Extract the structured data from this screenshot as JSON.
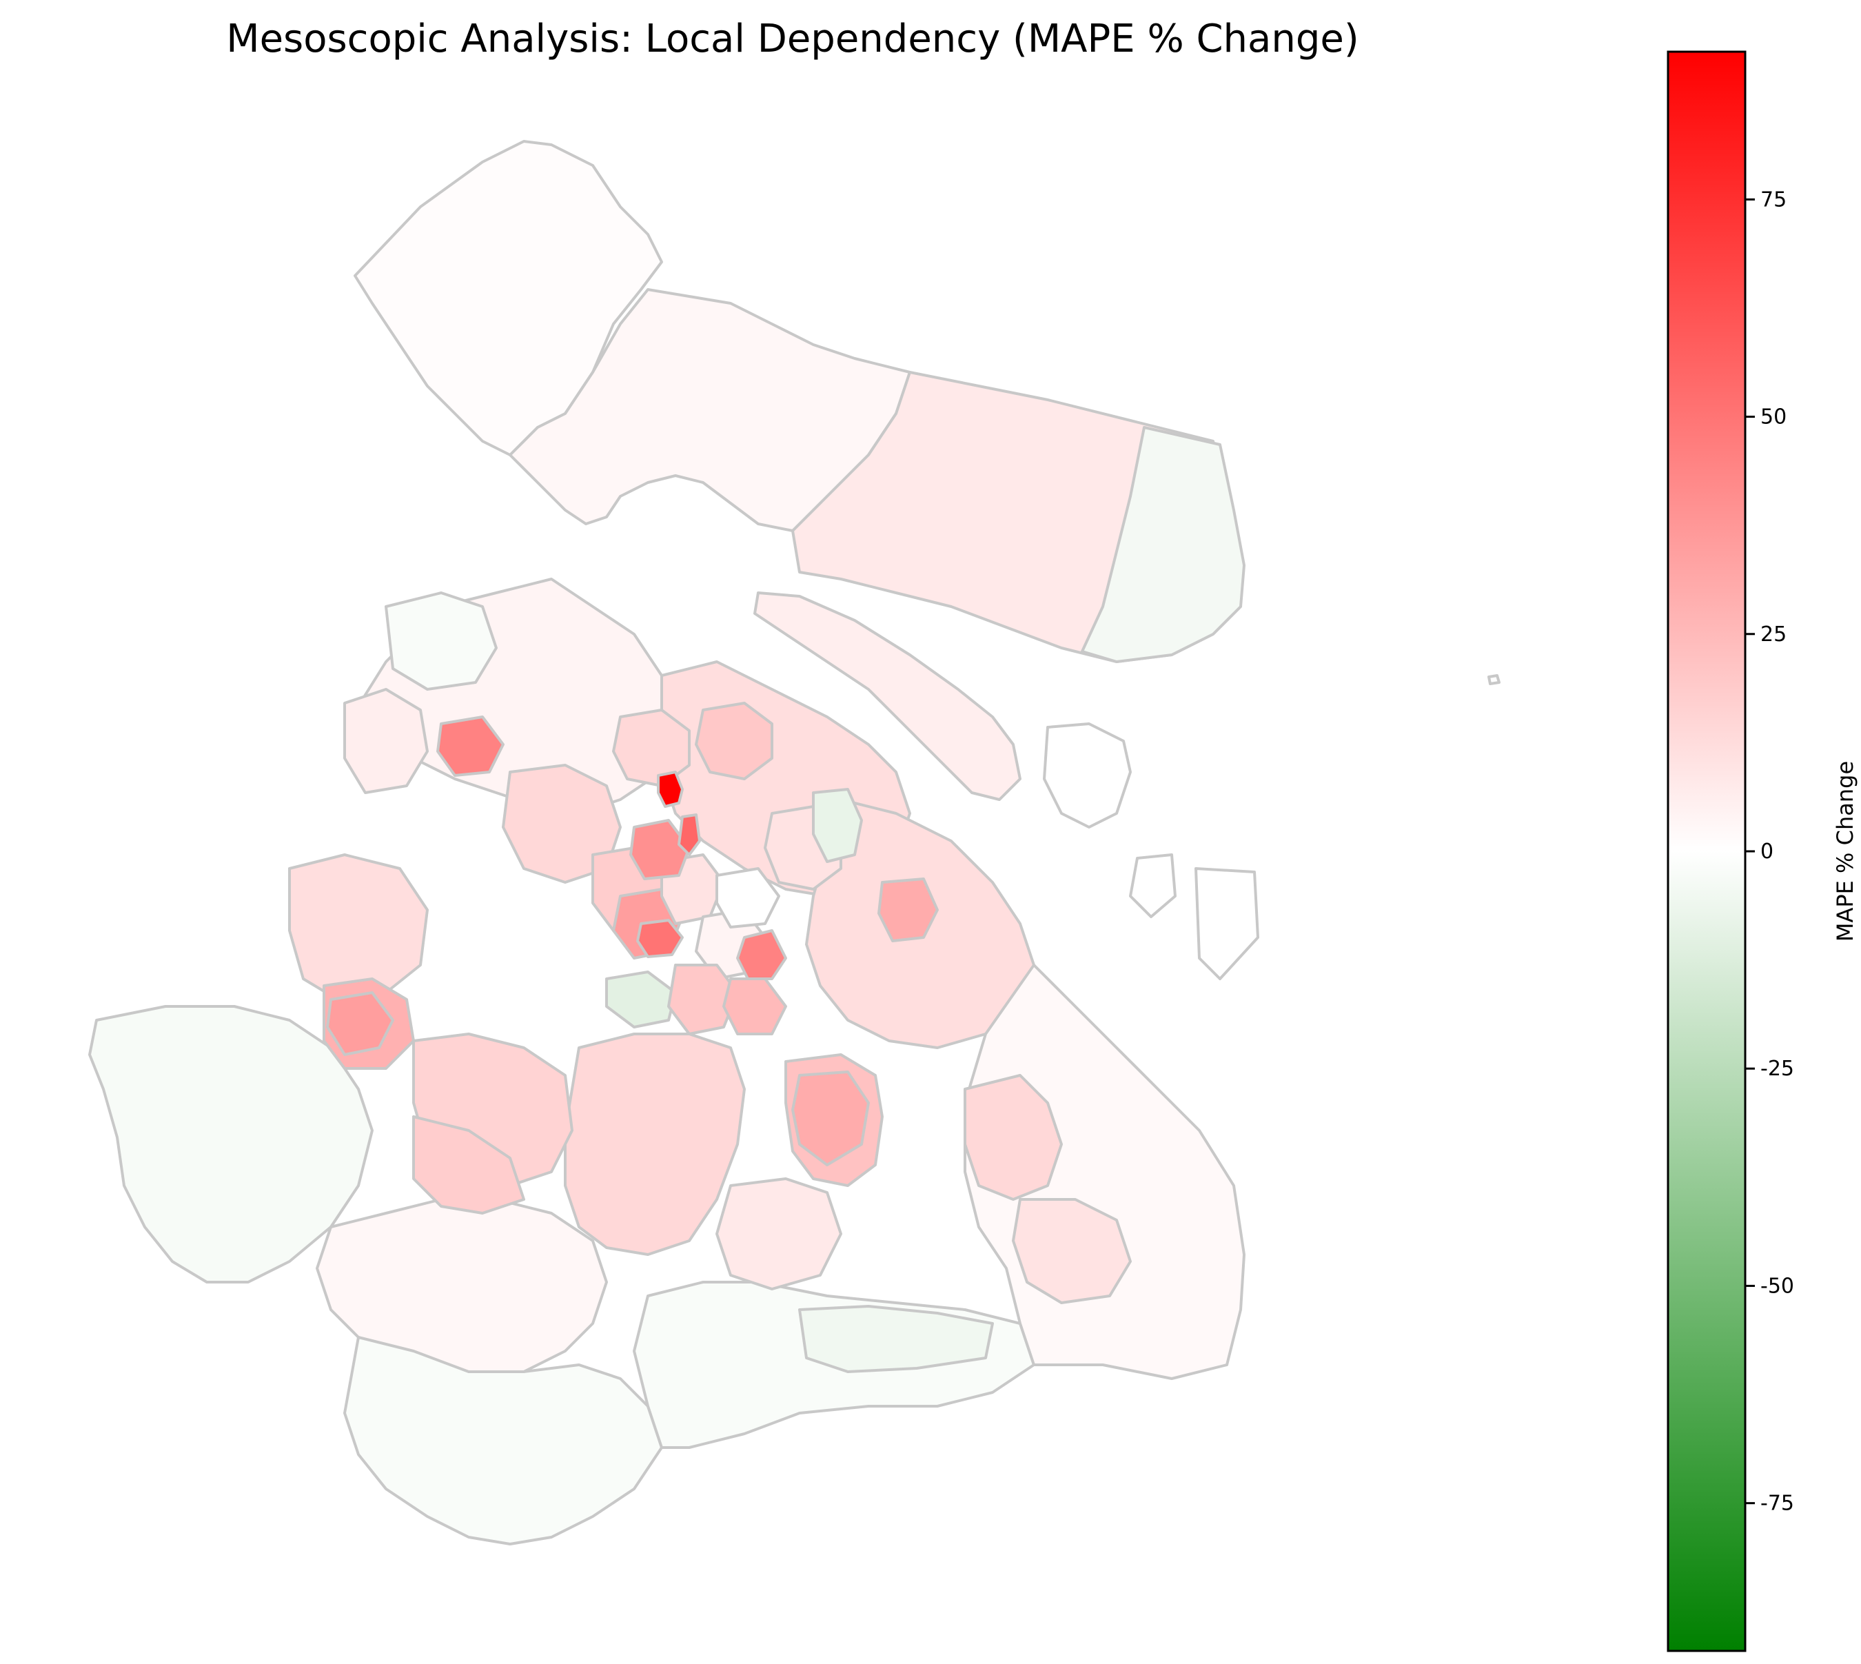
{
  "title": "Mesoscopic Analysis: Local Dependency (MAPE % Change)",
  "colorbar": {
    "label": "MAPE % Change",
    "min": -92,
    "max": 92,
    "ticks": [
      {
        "value": 75,
        "label": "75"
      },
      {
        "value": 50,
        "label": "50"
      },
      {
        "value": 25,
        "label": "25"
      },
      {
        "value": 0,
        "label": "0"
      },
      {
        "value": -25,
        "label": "-25"
      },
      {
        "value": -50,
        "label": "-50"
      },
      {
        "value": -75,
        "label": "-75"
      }
    ],
    "colors": {
      "low": "#008000",
      "mid": "#ffffff",
      "high": "#ff0000"
    }
  },
  "map": {
    "region_stroke": "#c8c8c8"
  }
}
